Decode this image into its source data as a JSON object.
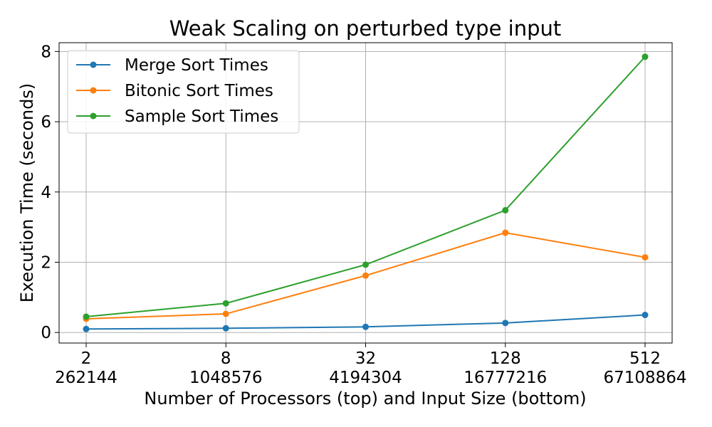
{
  "chart_data": {
    "type": "line",
    "title": "Weak Scaling on perturbed type input",
    "xlabel": "Number of Processors (top) and Input Size (bottom)",
    "ylabel": "Execution Time (seconds)",
    "categories": [
      "2",
      "8",
      "32",
      "128",
      "512"
    ],
    "categories_secondary": [
      "262144",
      "1048576",
      "4194304",
      "16777216",
      "67108864"
    ],
    "ylim": [
      -0.3,
      8.25
    ],
    "yticks": [
      0,
      2,
      4,
      6,
      8
    ],
    "grid": true,
    "legend_position": "top-left",
    "series": [
      {
        "name": "Merge Sort Times",
        "color": "#1f77b4",
        "values": [
          0.1,
          0.12,
          0.16,
          0.27,
          0.5
        ]
      },
      {
        "name": "Bitonic Sort Times",
        "color": "#ff7f0e",
        "values": [
          0.39,
          0.53,
          1.62,
          2.84,
          2.14
        ]
      },
      {
        "name": "Sample Sort Times",
        "color": "#2ca02c",
        "values": [
          0.45,
          0.83,
          1.93,
          3.48,
          7.85
        ]
      }
    ]
  }
}
